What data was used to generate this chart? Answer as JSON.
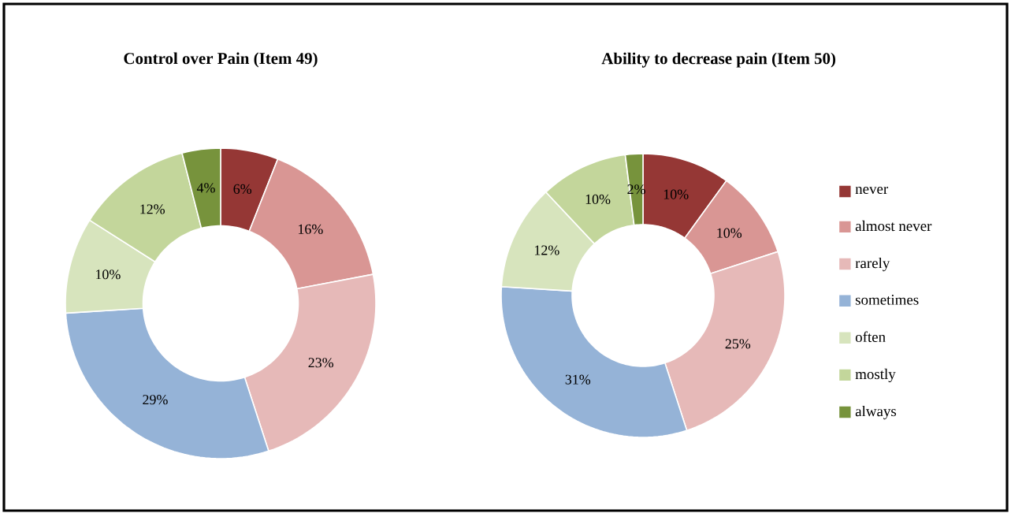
{
  "chart_data": [
    {
      "type": "donut",
      "title": "Control over Pain (Item 49)",
      "values": [
        6,
        16,
        23,
        29,
        10,
        12,
        4
      ],
      "value_labels": [
        "6%",
        "16%",
        "23%",
        "29%",
        "10%",
        "12%",
        "4%"
      ],
      "colors": [
        "#953735",
        "#d99694",
        "#e6b9b8",
        "#95b3d7",
        "#d7e4bd",
        "#c3d69b",
        "#77933c"
      ],
      "legend": false
    },
    {
      "type": "donut",
      "title": "Ability to decrease pain (Item 50)",
      "categories": [
        "never",
        "almost never",
        "rarely",
        "sometimes",
        "often",
        "mostly",
        "always"
      ],
      "values": [
        10,
        10,
        25,
        31,
        12,
        10,
        2
      ],
      "value_labels": [
        "10%",
        "10%",
        "25%",
        "31%",
        "12%",
        "10%",
        "2%"
      ],
      "colors": [
        "#953735",
        "#d99694",
        "#e6b9b8",
        "#95b3d7",
        "#d7e4bd",
        "#c3d69b",
        "#77933c"
      ],
      "legend": "right"
    }
  ]
}
